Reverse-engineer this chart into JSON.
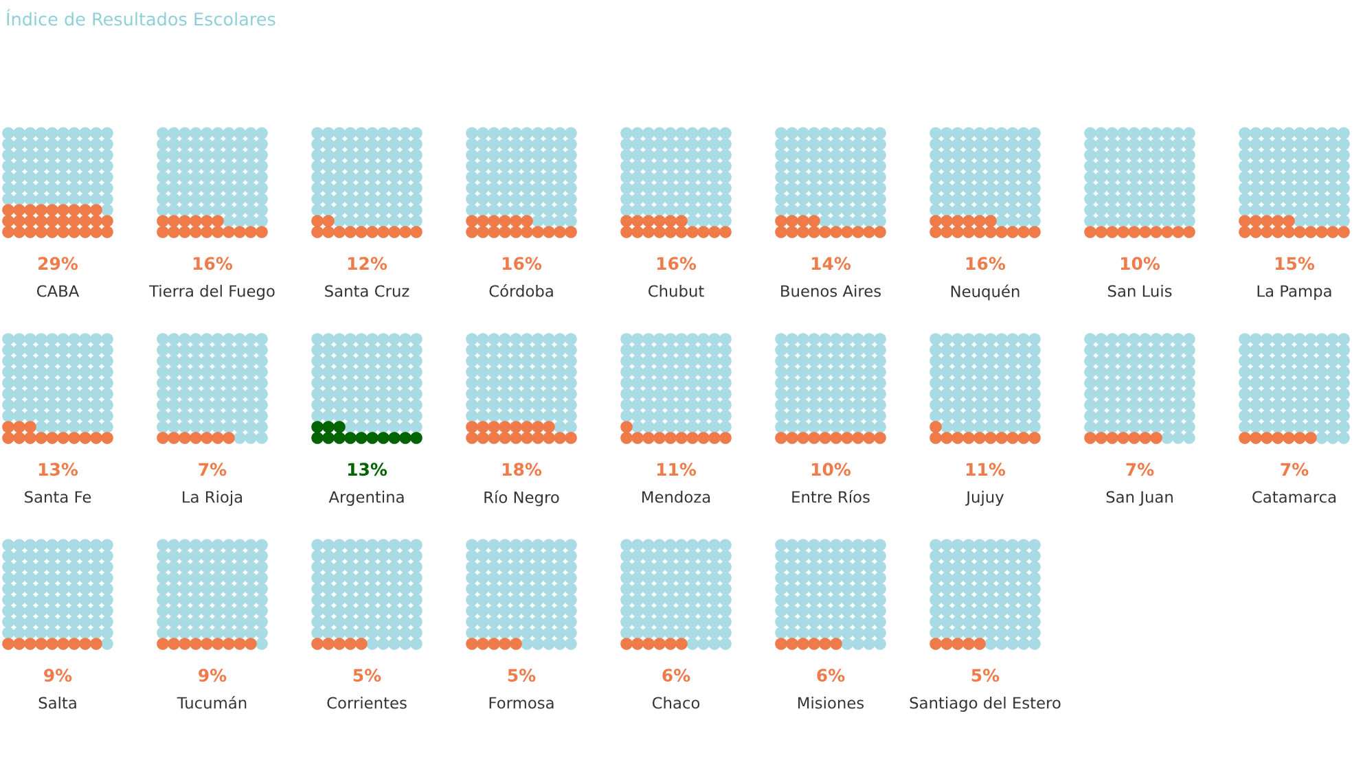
{
  "chart_data": {
    "type": "other",
    "title": "Índice de Resultados Escolares",
    "categories": [
      "CABA",
      "Tierra del Fuego",
      "Santa Cruz",
      "Córdoba",
      "Chubut",
      "Buenos Aires",
      "Neuquén",
      "San Luis",
      "La Pampa",
      "Santa Fe",
      "La Rioja",
      "Argentina",
      "Río Negro",
      "Mendoza",
      "Entre Ríos",
      "Jujuy",
      "San Juan",
      "Catamarca",
      "Salta",
      "Tucumán",
      "Corrientes",
      "Formosa",
      "Chaco",
      "Misiones",
      "Santiago del Estero"
    ],
    "values": [
      29,
      16,
      12,
      16,
      16,
      14,
      16,
      10,
      15,
      13,
      7,
      13,
      18,
      11,
      10,
      11,
      7,
      7,
      9,
      9,
      5,
      5,
      6,
      6,
      5
    ],
    "value_labels": [
      "29%",
      "16%",
      "12%",
      "16%",
      "16%",
      "14%",
      "16%",
      "10%",
      "15%",
      "13%",
      "7%",
      "13%",
      "18%",
      "11%",
      "10%",
      "11%",
      "7%",
      "7%",
      "9%",
      "9%",
      "5%",
      "5%",
      "6%",
      "6%",
      "5%"
    ],
    "colors": [
      "#ef7a4a",
      "#ef7a4a",
      "#ef7a4a",
      "#ef7a4a",
      "#ef7a4a",
      "#ef7a4a",
      "#ef7a4a",
      "#ef7a4a",
      "#ef7a4a",
      "#ef7a4a",
      "#ef7a4a",
      "#006400",
      "#ef7a4a",
      "#ef7a4a",
      "#ef7a4a",
      "#ef7a4a",
      "#ef7a4a",
      "#ef7a4a",
      "#ef7a4a",
      "#ef7a4a",
      "#ef7a4a",
      "#ef7a4a",
      "#ef7a4a",
      "#ef7a4a",
      "#ef7a4a"
    ]
  }
}
